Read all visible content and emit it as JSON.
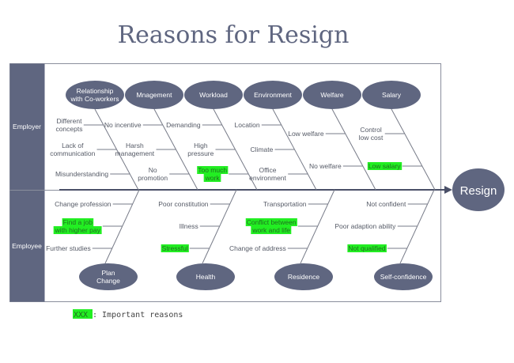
{
  "title": "Reasons for Resign",
  "effect": "Resign",
  "groups": {
    "employer": "Employer",
    "employee": "Employee"
  },
  "colors": {
    "node": "#5f6680",
    "highlight": "#22ee22"
  },
  "employer_categories": [
    {
      "name": [
        "Relationship",
        "with Co-workers"
      ],
      "causes": [
        [
          "Different",
          "concepts"
        ],
        [
          "Lack of",
          "communication"
        ],
        [
          "Misunderstanding"
        ]
      ]
    },
    {
      "name": [
        "Mnagement"
      ],
      "causes": [
        [
          "No incentive"
        ],
        [
          "Harsh",
          "management"
        ],
        [
          "No",
          "promotion"
        ]
      ]
    },
    {
      "name": [
        "Workload"
      ],
      "causes": [
        [
          "Demanding"
        ],
        [
          "High",
          "pressure"
        ],
        [
          "Too much",
          "work"
        ]
      ]
    },
    {
      "name": [
        "Environment"
      ],
      "causes": [
        [
          "Location"
        ],
        [
          "Climate"
        ],
        [
          "Office",
          "environment"
        ]
      ]
    },
    {
      "name": [
        "Welfare"
      ],
      "causes": [
        [
          "Low welfare"
        ],
        [
          "No welfare"
        ]
      ]
    },
    {
      "name": [
        "Salary"
      ],
      "causes": [
        [
          "Control",
          "low cost"
        ],
        [
          "Low salary"
        ]
      ]
    }
  ],
  "employee_categories": [
    {
      "name": [
        "Plan",
        "Change"
      ],
      "causes": [
        [
          "Change profession"
        ],
        [
          "Find a job",
          "with higher pay"
        ],
        [
          "Further studies"
        ]
      ]
    },
    {
      "name": [
        "Health"
      ],
      "causes": [
        [
          "Poor constitution"
        ],
        [
          "Illness"
        ],
        [
          "Stressful"
        ]
      ]
    },
    {
      "name": [
        "Residence"
      ],
      "causes": [
        [
          "Transportation"
        ],
        [
          "Conflict between",
          "work and life"
        ],
        [
          "Change of address"
        ]
      ]
    },
    {
      "name": [
        "Self-confidence"
      ],
      "causes": [
        [
          "Not confident"
        ],
        [
          "Poor adaption ability"
        ],
        [
          "Not qualified"
        ]
      ]
    }
  ],
  "important": [
    "Too much work",
    "Low salary",
    "Find a job with higher pay",
    "Stressful",
    "Conflict between work and life",
    "Not qualified"
  ],
  "legend": {
    "swatch": "XXX",
    "text": ": Important reasons"
  }
}
